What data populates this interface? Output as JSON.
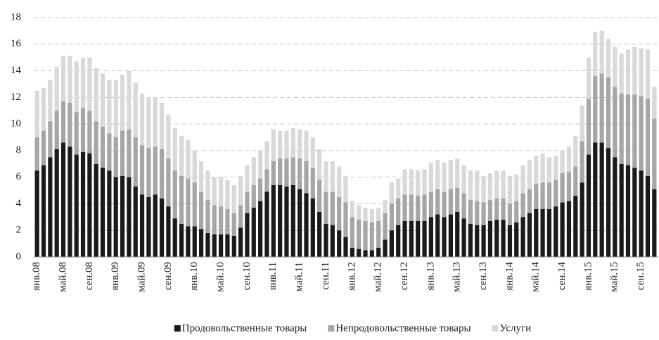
{
  "chart_data": {
    "type": "stacked_bar",
    "categories": [
      "янв.08",
      null,
      null,
      null,
      "май.08",
      null,
      null,
      null,
      "сен.08",
      null,
      null,
      null,
      "янв.09",
      null,
      null,
      null,
      "май.09",
      null,
      null,
      null,
      "сен.09",
      null,
      null,
      null,
      "янв.10",
      null,
      null,
      null,
      "май.10",
      null,
      null,
      null,
      "сен.10",
      null,
      null,
      null,
      "янв.11",
      null,
      null,
      null,
      "май.11",
      null,
      null,
      null,
      "сен.11",
      null,
      null,
      null,
      "янв.12",
      null,
      null,
      null,
      "май.12",
      null,
      null,
      null,
      "сен.12",
      null,
      null,
      null,
      "янв.13",
      null,
      null,
      null,
      "май.13",
      null,
      null,
      null,
      "сен.13",
      null,
      null,
      null,
      "янв.14",
      null,
      null,
      null,
      "май.14",
      null,
      null,
      null,
      "сен.14",
      null,
      null,
      null,
      "янв.15",
      null,
      null,
      null,
      "май.15",
      null,
      null,
      null,
      "сен.15",
      null,
      null
    ],
    "series": [
      {
        "name": "Продовольственные товары",
        "color": "#1a1a1a",
        "values": [
          6.5,
          6.9,
          7.5,
          8.1,
          8.6,
          8.3,
          7.7,
          7.9,
          7.8,
          7.0,
          6.7,
          6.5,
          6.0,
          6.1,
          6.0,
          5.3,
          4.7,
          4.5,
          4.7,
          4.4,
          3.8,
          2.9,
          2.5,
          2.3,
          2.3,
          2.1,
          1.8,
          1.7,
          1.7,
          1.7,
          1.6,
          2.2,
          3.3,
          3.7,
          4.2,
          4.9,
          5.4,
          5.4,
          5.3,
          5.4,
          5.1,
          4.8,
          4.4,
          3.4,
          2.5,
          2.4,
          2.0,
          1.5,
          0.7,
          0.6,
          0.5,
          0.5,
          0.7,
          1.3,
          2.0,
          2.4,
          2.7,
          2.7,
          2.7,
          2.7,
          3.0,
          3.2,
          3.0,
          3.2,
          3.4,
          2.9,
          2.5,
          2.4,
          2.4,
          2.7,
          2.8,
          2.8,
          2.4,
          2.6,
          3.0,
          3.3,
          3.6,
          3.6,
          3.6,
          3.8,
          4.1,
          4.2,
          4.6,
          5.6,
          7.7,
          8.6,
          8.6,
          8.2,
          7.5,
          7.0,
          6.9,
          6.7,
          6.5,
          6.1,
          5.1
        ]
      },
      {
        "name": "Непродовольственные товары",
        "color": "#a6a6a6",
        "values": [
          2.5,
          2.6,
          2.7,
          2.9,
          3.1,
          3.3,
          3.2,
          3.3,
          3.2,
          3.2,
          3.1,
          2.8,
          3.0,
          3.4,
          3.6,
          3.7,
          3.7,
          3.7,
          3.6,
          3.7,
          3.6,
          3.6,
          3.6,
          3.6,
          3.3,
          2.8,
          2.5,
          2.2,
          2.1,
          1.9,
          1.7,
          1.7,
          1.6,
          1.7,
          1.7,
          1.7,
          1.8,
          2.0,
          2.1,
          2.1,
          2.3,
          2.4,
          2.3,
          2.4,
          2.4,
          2.5,
          2.5,
          2.6,
          2.3,
          2.2,
          2.2,
          2.1,
          2.0,
          2.0,
          2.0,
          2.0,
          2.0,
          2.0,
          1.9,
          2.0,
          1.9,
          1.9,
          1.9,
          1.9,
          1.8,
          1.9,
          1.8,
          1.8,
          1.7,
          1.6,
          1.6,
          1.6,
          1.6,
          1.6,
          1.8,
          1.8,
          1.9,
          2.0,
          2.0,
          2.0,
          2.2,
          2.2,
          2.2,
          3.1,
          4.2,
          5.0,
          5.2,
          5.3,
          5.3,
          5.3,
          5.3,
          5.5,
          5.6,
          5.8,
          5.3
        ]
      },
      {
        "name": "Услуги",
        "color": "#d9d9d9",
        "values": [
          3.5,
          3.2,
          3.1,
          3.3,
          3.4,
          3.5,
          3.8,
          3.8,
          4.0,
          4.0,
          4.0,
          4.0,
          4.3,
          4.2,
          4.4,
          4.1,
          3.9,
          3.8,
          3.7,
          3.5,
          3.3,
          3.2,
          3.0,
          2.9,
          2.4,
          2.3,
          2.2,
          2.1,
          2.2,
          2.2,
          2.1,
          2.2,
          2.0,
          2.1,
          2.1,
          2.1,
          2.4,
          2.1,
          2.1,
          2.2,
          2.2,
          2.3,
          2.3,
          2.3,
          2.3,
          2.3,
          2.3,
          2.0,
          1.2,
          1.1,
          1.0,
          1.0,
          1.0,
          1.0,
          1.6,
          1.5,
          1.9,
          1.9,
          1.9,
          1.9,
          2.2,
          2.2,
          2.2,
          2.2,
          2.2,
          2.1,
          2.2,
          2.3,
          2.0,
          2.0,
          2.1,
          2.1,
          2.1,
          2.0,
          2.1,
          2.2,
          2.1,
          2.2,
          1.9,
          1.8,
          1.7,
          1.9,
          2.3,
          2.7,
          3.1,
          3.3,
          3.2,
          2.9,
          3.0,
          3.0,
          3.4,
          3.6,
          3.6,
          3.7,
          2.4
        ]
      }
    ],
    "ylim": [
      0,
      18
    ],
    "yticks": [
      0,
      2,
      4,
      6,
      8,
      10,
      12,
      14,
      16,
      18
    ],
    "grid": true,
    "legend": "bottom"
  }
}
